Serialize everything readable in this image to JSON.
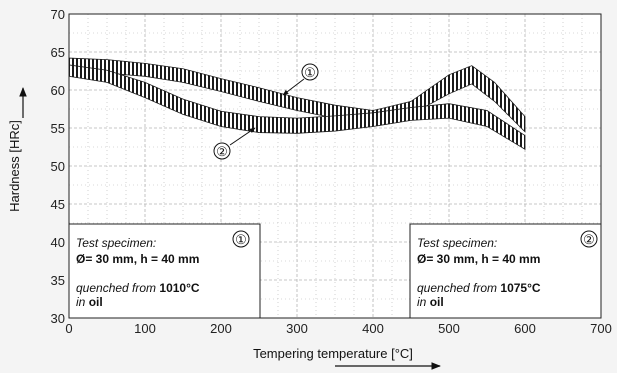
{
  "chart_data": {
    "type": "line",
    "xlabel": "Tempering temperature [°C]",
    "ylabel": "Hardness [HRc]",
    "xlim": [
      0,
      700
    ],
    "ylim": [
      30,
      70
    ],
    "xticks": [
      0,
      100,
      200,
      300,
      400,
      500,
      600,
      700
    ],
    "yticks": [
      30,
      35,
      40,
      45,
      50,
      55,
      60,
      65,
      70
    ],
    "grid": true,
    "series": [
      {
        "name": "1",
        "x": [
          0,
          50,
          100,
          150,
          200,
          250,
          300,
          350,
          400,
          450,
          500,
          530,
          560,
          600
        ],
        "upper": [
          64.2,
          64.0,
          63.5,
          62.8,
          61.5,
          60.3,
          59.0,
          58.0,
          57.3,
          58.5,
          62.0,
          63.2,
          61.0,
          56.5
        ],
        "lower": [
          62.3,
          62.2,
          61.8,
          61.0,
          59.8,
          58.5,
          57.3,
          56.3,
          55.8,
          56.8,
          59.5,
          60.8,
          58.5,
          54.5
        ]
      },
      {
        "name": "2",
        "x": [
          0,
          50,
          100,
          150,
          200,
          250,
          300,
          350,
          400,
          450,
          500,
          550,
          600
        ],
        "upper": [
          63.3,
          62.6,
          61.0,
          58.8,
          57.2,
          56.5,
          56.3,
          56.6,
          57.0,
          57.7,
          58.2,
          57.3,
          54.0
        ],
        "lower": [
          61.8,
          61.0,
          59.0,
          56.8,
          55.2,
          54.4,
          54.3,
          54.6,
          55.2,
          56.0,
          56.3,
          55.2,
          52.2
        ]
      }
    ],
    "annotations": [
      "①",
      "②"
    ],
    "boxes": [
      {
        "number": "①",
        "line1": "Test specimen:",
        "line2": "Ø= 30 mm, h = 40 mm",
        "line3_prefix": "quenched from ",
        "line3_value": "1010°C",
        "line4_prefix": "in ",
        "line4_value": "oil"
      },
      {
        "number": "②",
        "line1": "Test specimen:",
        "line2": "Ø= 30 mm, h = 40 mm",
        "line3_prefix": "quenched from ",
        "line3_value": "1075°C",
        "line4_prefix": "in ",
        "line4_value": "oil"
      }
    ]
  },
  "colors": {
    "background": "#f4f4f4",
    "plot_background": "#ffffff",
    "band": "#1a1a1a",
    "grid": "#b5b5b5"
  }
}
